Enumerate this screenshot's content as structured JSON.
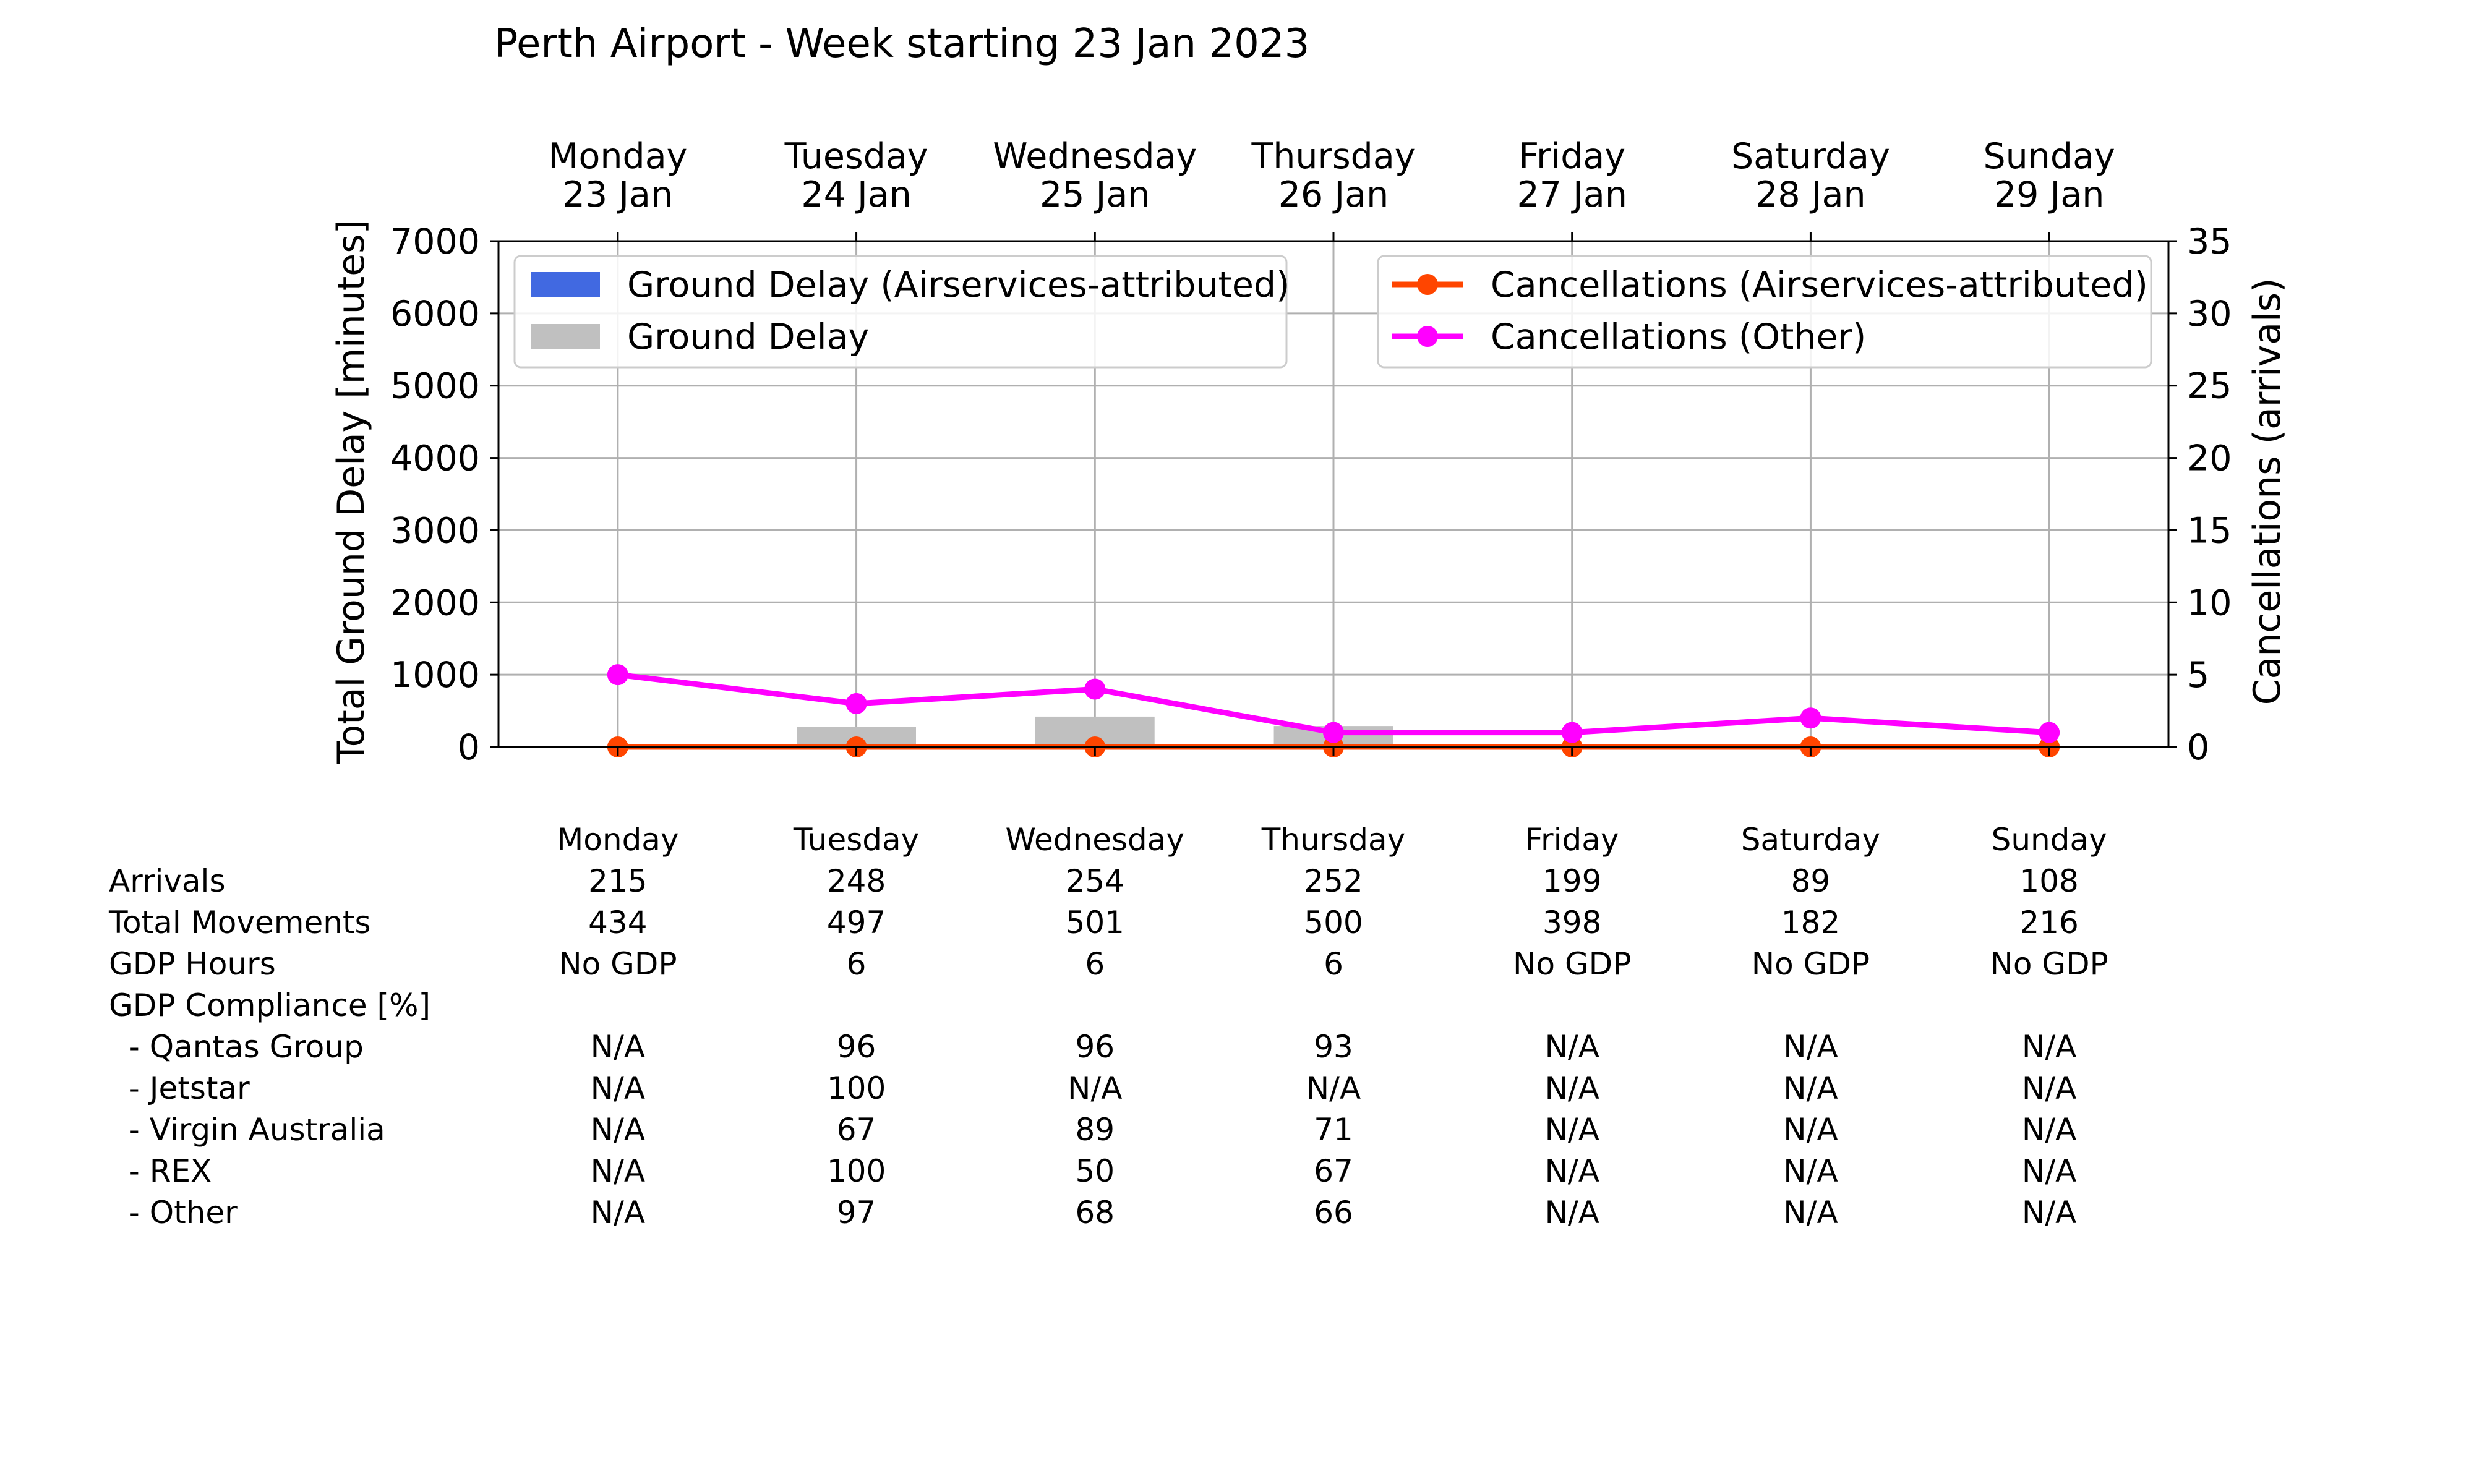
{
  "chart_data": {
    "type": "bar",
    "title": "Perth Airport - Week starting 23 Jan 2023",
    "days": [
      {
        "name": "Monday",
        "date": "23 Jan"
      },
      {
        "name": "Tuesday",
        "date": "24 Jan"
      },
      {
        "name": "Wednesday",
        "date": "25 Jan"
      },
      {
        "name": "Thursday",
        "date": "26 Jan"
      },
      {
        "name": "Friday",
        "date": "27 Jan"
      },
      {
        "name": "Saturday",
        "date": "28 Jan"
      },
      {
        "name": "Sunday",
        "date": "29 Jan"
      }
    ],
    "ylabel": "Total Ground Delay [minutes]",
    "y2label": "Cancellations (arrivals)",
    "ylim": [
      0,
      7000
    ],
    "y2lim": [
      0,
      35
    ],
    "yticks": [
      "0",
      "1000",
      "2000",
      "3000",
      "4000",
      "5000",
      "6000",
      "7000"
    ],
    "y2ticks": [
      "0",
      "5",
      "10",
      "15",
      "20",
      "25",
      "30",
      "35"
    ],
    "grid": true,
    "bar_series": [
      {
        "name": "Ground Delay (Airservices-attributed)",
        "color": "#4169e1",
        "values": [
          0,
          0,
          0,
          0,
          0,
          0,
          0
        ]
      },
      {
        "name": "Ground Delay",
        "color": "#c0c0c0",
        "values": [
          0,
          280,
          420,
          290,
          0,
          0,
          0
        ]
      }
    ],
    "line_series": [
      {
        "name": "Cancellations (Airservices-attributed)",
        "color": "#ff4500",
        "values": [
          0,
          0,
          0,
          0,
          0,
          0,
          0
        ]
      },
      {
        "name": "Cancellations (Other)",
        "color": "#ff00ff",
        "values": [
          5,
          3,
          4,
          1,
          1,
          2,
          1
        ]
      }
    ],
    "legend_left_placement": "upper-left",
    "legend_right_placement": "upper-right"
  },
  "table": {
    "header": [
      "Monday",
      "Tuesday",
      "Wednesday",
      "Thursday",
      "Friday",
      "Saturday",
      "Sunday"
    ],
    "rows": [
      {
        "label": "Arrivals",
        "values": [
          "215",
          "248",
          "254",
          "252",
          "199",
          "89",
          "108"
        ]
      },
      {
        "label": "Total Movements",
        "values": [
          "434",
          "497",
          "501",
          "500",
          "398",
          "182",
          "216"
        ]
      },
      {
        "label": "GDP Hours",
        "values": [
          "No GDP",
          "6",
          "6",
          "6",
          "No GDP",
          "No GDP",
          "No GDP"
        ]
      },
      {
        "label": "GDP Compliance [%]",
        "values": [
          "",
          "",
          "",
          "",
          "",
          "",
          ""
        ]
      },
      {
        "label": "  - Qantas Group",
        "values": [
          "N/A",
          "96",
          "96",
          "93",
          "N/A",
          "N/A",
          "N/A"
        ]
      },
      {
        "label": "  - Jetstar",
        "values": [
          "N/A",
          "100",
          "N/A",
          "N/A",
          "N/A",
          "N/A",
          "N/A"
        ]
      },
      {
        "label": "  - Virgin Australia",
        "values": [
          "N/A",
          "67",
          "89",
          "71",
          "N/A",
          "N/A",
          "N/A"
        ]
      },
      {
        "label": "  - REX",
        "values": [
          "N/A",
          "100",
          "50",
          "67",
          "N/A",
          "N/A",
          "N/A"
        ]
      },
      {
        "label": "  - Other",
        "values": [
          "N/A",
          "97",
          "68",
          "66",
          "N/A",
          "N/A",
          "N/A"
        ]
      }
    ]
  }
}
